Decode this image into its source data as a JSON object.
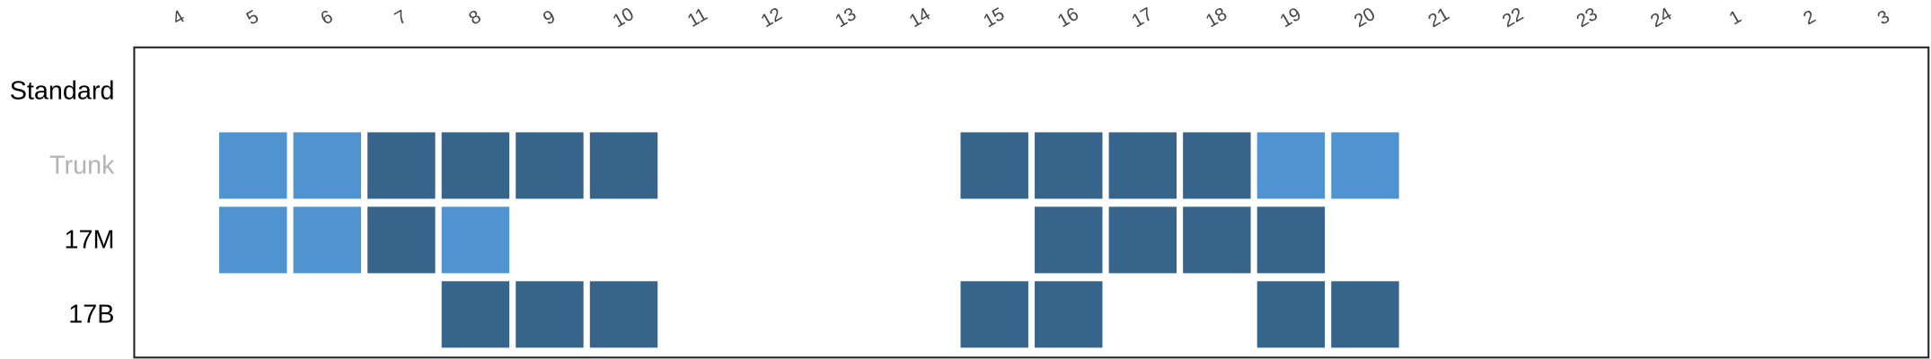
{
  "chart_data": {
    "type": "heatmap",
    "categories": [
      "4",
      "5",
      "6",
      "7",
      "8",
      "9",
      "10",
      "11",
      "12",
      "13",
      "14",
      "15",
      "16",
      "17",
      "18",
      "19",
      "20",
      "21",
      "22",
      "23",
      "24",
      "1",
      "2",
      "3"
    ],
    "rows": [
      "Standard",
      "Trunk",
      "17M",
      "17B"
    ],
    "row_label_colors": [
      "#000000",
      "#b3b3b3",
      "#000000",
      "#000000"
    ],
    "level_colors": {
      "1": "#4f94d0",
      "2": "#36648b"
    },
    "values": [
      [
        null,
        null,
        null,
        null,
        null,
        null,
        null,
        null,
        null,
        null,
        null,
        null,
        null,
        null,
        null,
        null,
        null,
        null,
        null,
        null,
        null,
        null,
        null,
        null
      ],
      [
        null,
        1,
        1,
        2,
        2,
        2,
        2,
        null,
        null,
        null,
        null,
        2,
        2,
        2,
        2,
        1,
        1,
        null,
        null,
        null,
        null,
        null,
        null,
        null
      ],
      [
        null,
        1,
        1,
        2,
        1,
        null,
        null,
        null,
        null,
        null,
        null,
        null,
        2,
        2,
        2,
        2,
        null,
        null,
        null,
        null,
        null,
        null,
        null,
        null
      ],
      [
        null,
        null,
        null,
        null,
        2,
        2,
        2,
        null,
        null,
        null,
        null,
        2,
        2,
        null,
        null,
        2,
        2,
        null,
        null,
        null,
        null,
        null,
        null,
        null
      ]
    ]
  }
}
